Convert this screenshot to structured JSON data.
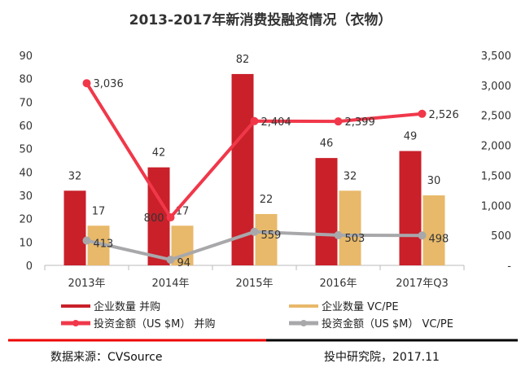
{
  "chart_data": {
    "type": "bar",
    "title": "2013-2017年新消费投融资情况（衣物）",
    "categories": [
      "2013年",
      "2014年",
      "2015年",
      "2016年",
      "2017年Q3"
    ],
    "y_left": {
      "range": [
        0,
        90
      ],
      "ticks": [
        "0",
        "10",
        "20",
        "30",
        "40",
        "50",
        "60",
        "70",
        "80",
        "90"
      ]
    },
    "y_right": {
      "range": [
        0,
        3500
      ],
      "ticks": [
        "-",
        "500",
        "1,000",
        "1,500",
        "2,000",
        "2,500",
        "3,000",
        "3,500"
      ]
    },
    "grid": false,
    "legend_position": "bottom",
    "series": [
      {
        "name": "企业数量 并购",
        "kind": "bar",
        "axis": "left",
        "color": "#c9202a",
        "values": [
          32,
          42,
          82,
          46,
          49
        ],
        "labels": [
          "32",
          "42",
          "82",
          "46",
          "49"
        ]
      },
      {
        "name": "企业数量 VC/PE",
        "kind": "bar",
        "axis": "left",
        "color": "#e8b96a",
        "values": [
          17,
          17,
          22,
          32,
          30
        ],
        "labels": [
          "17",
          "17",
          "22",
          "32",
          "30"
        ]
      },
      {
        "name": "投资金额（US $M） 并购",
        "kind": "line",
        "axis": "right",
        "color": "#f0384a",
        "values": [
          3036,
          800,
          2404,
          2399,
          2526
        ],
        "labels": [
          "3,036",
          "800",
          "2,404",
          "2,399",
          "2,526"
        ]
      },
      {
        "name": "投资金额（US $M） VC/PE",
        "kind": "line",
        "axis": "right",
        "color": "#a8a8ab",
        "values": [
          413,
          94,
          559,
          503,
          498
        ],
        "labels": [
          "413",
          "94",
          "559",
          "503",
          "498"
        ]
      }
    ]
  },
  "footer": {
    "source": "数据来源：CVSource",
    "credit": "投中研究院，2017.11"
  }
}
